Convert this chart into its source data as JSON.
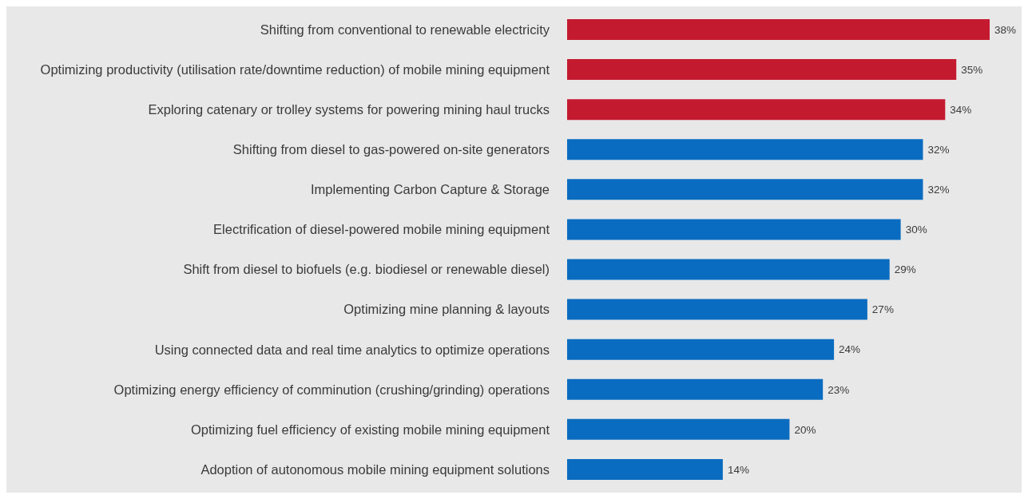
{
  "chart_data": {
    "type": "bar",
    "orientation": "horizontal",
    "categories": [
      "Shifting from conventional to renewable electricity",
      "Optimizing productivity (utilisation rate/downtime reduction) of mobile mining equipment",
      "Exploring catenary or trolley systems for powering mining haul trucks",
      "Shifting from diesel to gas-powered on-site generators",
      "Implementing Carbon Capture & Storage",
      "Electrification of diesel-powered mobile mining equipment",
      "Shift from diesel to biofuels (e.g. biodiesel or renewable diesel)",
      "Optimizing mine planning & layouts",
      "Using connected data and real time analytics to optimize operations",
      "Optimizing energy efficiency of comminution (crushing/grinding) operations",
      "Optimizing fuel efficiency of existing mobile mining equipment",
      "Adoption of autonomous mobile mining equipment solutions"
    ],
    "values": [
      38,
      35,
      34,
      32,
      32,
      30,
      29,
      27,
      24,
      23,
      20,
      14
    ],
    "value_labels": [
      "38%",
      "35%",
      "34%",
      "32%",
      "32%",
      "30%",
      "29%",
      "27%",
      "24%",
      "23%",
      "20%",
      "14%"
    ],
    "colors": [
      "#c41a30",
      "#c41a30",
      "#c41a30",
      "#0a6cc0",
      "#0a6cc0",
      "#0a6cc0",
      "#0a6cc0",
      "#0a6cc0",
      "#0a6cc0",
      "#0a6cc0",
      "#0a6cc0",
      "#0a6cc0"
    ],
    "tick_labels": "y"
  }
}
